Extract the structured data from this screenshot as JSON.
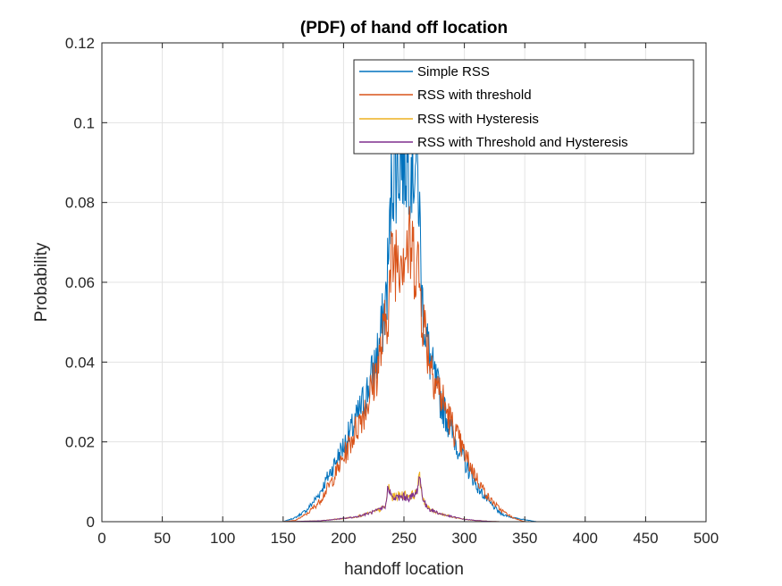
{
  "chart_data": {
    "type": "line",
    "title": "(PDF) of hand off location",
    "xlabel": "handoff location",
    "ylabel": "Probability",
    "xlim": [
      0,
      500
    ],
    "ylim": [
      0,
      0.12
    ],
    "x_ticks": [
      0,
      50,
      100,
      150,
      200,
      250,
      300,
      350,
      400,
      450,
      500
    ],
    "x_tick_labels": [
      "0",
      "50",
      "100",
      "150",
      "200",
      "250",
      "300",
      "350",
      "400",
      "450",
      "500"
    ],
    "y_ticks": [
      0,
      0.02,
      0.04,
      0.06,
      0.08,
      0.1,
      0.12
    ],
    "y_tick_labels": [
      "0",
      "0.02",
      "0.04",
      "0.06",
      "0.08",
      "0.1",
      "0.12"
    ],
    "grid": true,
    "legend_position": "top-right",
    "series": [
      {
        "name": "Simple RSS",
        "color": "#0072BD",
        "x": [
          15,
          100,
          150,
          160,
          170,
          180,
          190,
          200,
          210,
          220,
          225,
          230,
          235,
          238,
          240,
          245,
          250,
          255,
          260,
          262,
          265,
          270,
          275,
          280,
          290,
          300,
          310,
          320,
          330,
          340,
          350,
          360,
          400,
          488
        ],
        "y": [
          0,
          0,
          0,
          0.001,
          0.003,
          0.007,
          0.013,
          0.019,
          0.025,
          0.033,
          0.038,
          0.045,
          0.055,
          0.07,
          0.088,
          0.091,
          0.092,
          0.092,
          0.09,
          0.085,
          0.055,
          0.043,
          0.036,
          0.031,
          0.022,
          0.015,
          0.009,
          0.005,
          0.002,
          0.001,
          0.0005,
          0,
          0,
          0
        ]
      },
      {
        "name": "RSS with threshold",
        "color": "#D95319",
        "x": [
          15,
          100,
          150,
          160,
          170,
          180,
          190,
          200,
          210,
          220,
          225,
          230,
          235,
          238,
          240,
          245,
          250,
          255,
          260,
          262,
          265,
          270,
          275,
          280,
          290,
          300,
          310,
          320,
          330,
          340,
          350,
          400,
          488
        ],
        "y": [
          0,
          0,
          0,
          0.0003,
          0.002,
          0.005,
          0.01,
          0.016,
          0.023,
          0.03,
          0.035,
          0.041,
          0.05,
          0.058,
          0.065,
          0.068,
          0.069,
          0.068,
          0.066,
          0.063,
          0.053,
          0.043,
          0.037,
          0.032,
          0.024,
          0.017,
          0.011,
          0.006,
          0.003,
          0.001,
          0,
          0,
          0
        ]
      },
      {
        "name": "RSS with Hysteresis",
        "color": "#EDB120",
        "x": [
          15,
          150,
          180,
          200,
          210,
          220,
          230,
          235,
          237,
          240,
          245,
          250,
          255,
          260,
          263,
          265,
          268,
          272,
          280,
          290,
          300,
          310,
          320,
          330,
          488
        ],
        "y": [
          0,
          0,
          0.0002,
          0.0008,
          0.0012,
          0.002,
          0.003,
          0.004,
          0.009,
          0.006,
          0.0065,
          0.0068,
          0.0065,
          0.007,
          0.011,
          0.007,
          0.004,
          0.003,
          0.002,
          0.0012,
          0.0006,
          0.0003,
          0.0001,
          0,
          0
        ]
      },
      {
        "name": "RSS with Threshold and Hysteresis",
        "color": "#7E2F8E",
        "x": [
          15,
          150,
          180,
          200,
          210,
          220,
          230,
          235,
          237,
          240,
          245,
          250,
          255,
          260,
          263,
          265,
          268,
          272,
          280,
          290,
          300,
          310,
          320,
          330,
          488
        ],
        "y": [
          0,
          0,
          0.0002,
          0.0008,
          0.0012,
          0.002,
          0.003,
          0.004,
          0.0095,
          0.0058,
          0.006,
          0.0062,
          0.006,
          0.0068,
          0.0115,
          0.0068,
          0.004,
          0.003,
          0.002,
          0.0012,
          0.0006,
          0.0003,
          0.0001,
          0,
          0
        ]
      }
    ]
  }
}
